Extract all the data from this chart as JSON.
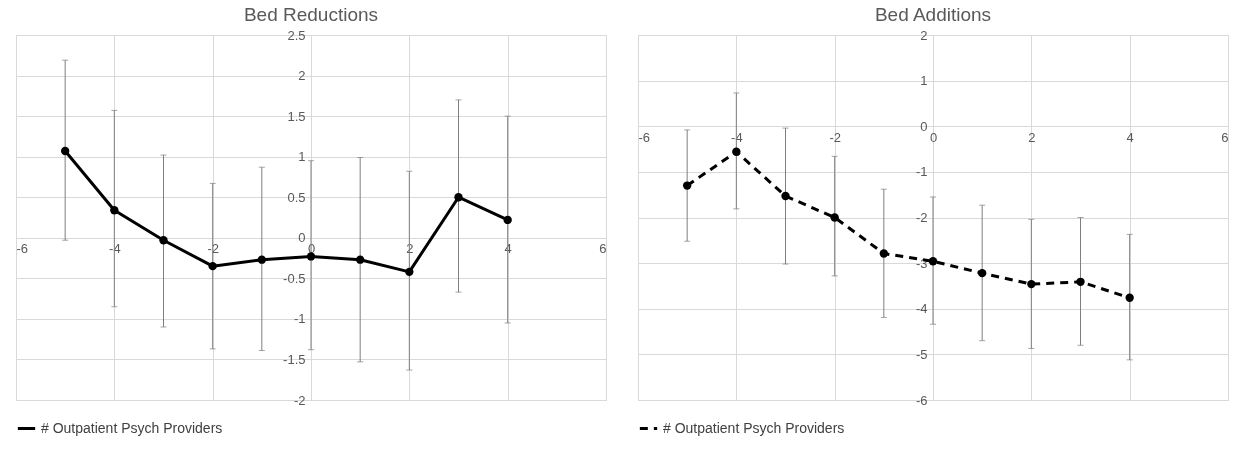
{
  "chart_data": [
    {
      "type": "line",
      "title": "Bed Reductions",
      "x": [
        -5,
        -4,
        -3,
        -2,
        -1,
        0,
        1,
        2,
        3,
        4
      ],
      "xlim": [
        -6,
        6
      ],
      "xticks": [
        -6,
        -4,
        -2,
        0,
        2,
        4,
        6
      ],
      "ylim": [
        -2,
        2.5
      ],
      "yticks": [
        -2,
        -1.5,
        -1,
        -0.5,
        0,
        0.5,
        1,
        1.5,
        2,
        2.5
      ],
      "grid": true,
      "legend": "bottom",
      "marker": "circle",
      "line_style": "solid",
      "series": [
        {
          "name": "# Outpatient Psych Providers",
          "color": "#000000",
          "values": [
            1.07,
            0.34,
            -0.03,
            -0.35,
            -0.27,
            -0.23,
            -0.27,
            -0.42,
            0.5,
            0.22
          ],
          "errors": [
            [
              -0.03,
              2.19
            ],
            [
              -0.85,
              1.57
            ],
            [
              -1.1,
              1.02
            ],
            [
              -1.37,
              0.67
            ],
            [
              -1.39,
              0.87
            ],
            [
              -1.38,
              0.95
            ],
            [
              -1.53,
              0.99
            ],
            [
              -1.63,
              0.82
            ],
            [
              -0.67,
              1.7
            ],
            [
              -1.05,
              1.5
            ]
          ]
        }
      ]
    },
    {
      "type": "line",
      "title": "Bed Additions",
      "x": [
        -5,
        -4,
        -3,
        -2,
        -1,
        0,
        1,
        2,
        3,
        4
      ],
      "xlim": [
        -6,
        6
      ],
      "xticks": [
        -6,
        -4,
        -2,
        0,
        2,
        4,
        6
      ],
      "ylim": [
        -6,
        2
      ],
      "yticks": [
        -6,
        -5,
        -4,
        -3,
        -2,
        -1,
        0,
        1,
        2
      ],
      "grid": true,
      "legend": "bottom",
      "marker": "circle",
      "line_style": "dashed",
      "series": [
        {
          "name": "# Outpatient Psych Providers",
          "color": "#000000",
          "values": [
            -1.3,
            -0.56,
            -1.53,
            -2.0,
            -2.79,
            -2.96,
            -3.22,
            -3.46,
            -3.41,
            -3.76
          ],
          "errors": [
            [
              -2.52,
              -0.08
            ],
            [
              -1.81,
              0.73
            ],
            [
              -3.02,
              -0.04
            ],
            [
              -3.28,
              -0.66
            ],
            [
              -4.19,
              -1.38
            ],
            [
              -4.34,
              -1.55
            ],
            [
              -4.7,
              -1.73
            ],
            [
              -4.87,
              -2.04
            ],
            [
              -4.8,
              -2.0
            ],
            [
              -5.12,
              -2.37
            ]
          ]
        }
      ]
    }
  ]
}
